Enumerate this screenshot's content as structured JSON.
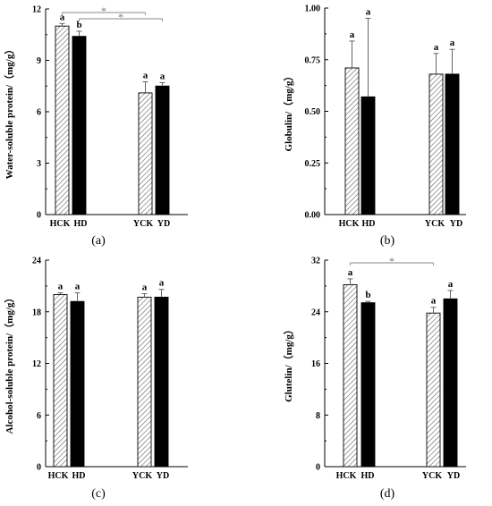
{
  "figure": {
    "panels": [
      {
        "id": "a",
        "panel_label": "(a)",
        "chart_data": {
          "type": "bar",
          "categories": [
            "HCK",
            "HD",
            "YCK",
            "YD"
          ],
          "values": [
            11.0,
            10.4,
            7.1,
            7.5
          ],
          "errors": [
            0.15,
            0.3,
            0.65,
            0.2
          ],
          "letters": [
            "a",
            "b",
            "a",
            "a"
          ],
          "fills": [
            "hatch",
            "solid",
            "hatch",
            "solid"
          ],
          "ylabel": "Water-soluble protein/（mg/g）",
          "ylim": [
            0,
            12
          ],
          "yticks": [
            "0",
            "3",
            "6",
            "9",
            "12"
          ],
          "significance": [
            {
              "from": 0,
              "to": 2,
              "mark": "*"
            },
            {
              "from": 1,
              "to": 3,
              "mark": "*"
            }
          ]
        }
      },
      {
        "id": "b",
        "panel_label": "(b)",
        "chart_data": {
          "type": "bar",
          "categories": [
            "HCK",
            "HD",
            "YCK",
            "YD"
          ],
          "values": [
            0.71,
            0.57,
            0.68,
            0.68
          ],
          "errors": [
            0.13,
            0.38,
            0.1,
            0.12
          ],
          "letters": [
            "a",
            "a",
            "a",
            "a"
          ],
          "fills": [
            "hatch",
            "solid",
            "hatch",
            "solid"
          ],
          "ylabel": "Globulin/（mg/g）",
          "ylim": [
            0,
            1.0
          ],
          "yticks": [
            "0.00",
            "0.25",
            "0.50",
            "0.75",
            "1.00"
          ],
          "significance": []
        }
      },
      {
        "id": "c",
        "panel_label": "(c)",
        "chart_data": {
          "type": "bar",
          "categories": [
            "HCK",
            "HD",
            "YCK",
            "YD"
          ],
          "values": [
            20.0,
            19.2,
            19.7,
            19.7
          ],
          "errors": [
            0.2,
            1.0,
            0.4,
            0.9
          ],
          "letters": [
            "a",
            "a",
            "a",
            "a"
          ],
          "fills": [
            "hatch",
            "solid",
            "hatch",
            "solid"
          ],
          "ylabel": "Alcohol-soluble protein/（mg/g）",
          "ylim": [
            0,
            24
          ],
          "yticks": [
            "0",
            "6",
            "12",
            "18",
            "24"
          ],
          "significance": []
        }
      },
      {
        "id": "d",
        "panel_label": "(d)",
        "chart_data": {
          "type": "bar",
          "categories": [
            "HCK",
            "HD",
            "YCK",
            "YD"
          ],
          "values": [
            28.2,
            25.4,
            23.8,
            26.0
          ],
          "errors": [
            0.9,
            0.2,
            0.9,
            1.3
          ],
          "letters": [
            "a",
            "b",
            "a",
            "a"
          ],
          "fills": [
            "hatch",
            "solid",
            "hatch",
            "solid"
          ],
          "ylabel": "Glutelin/（mg/g）",
          "ylim": [
            0,
            32
          ],
          "yticks": [
            "0",
            "8",
            "16",
            "24",
            "32"
          ],
          "significance": [
            {
              "from": 0,
              "to": 2,
              "mark": "*"
            }
          ]
        }
      }
    ]
  },
  "colors": {
    "solid_bar": "#000000",
    "hatch_line": "#555555",
    "axis": "#000000",
    "sig_line": "#888888"
  }
}
